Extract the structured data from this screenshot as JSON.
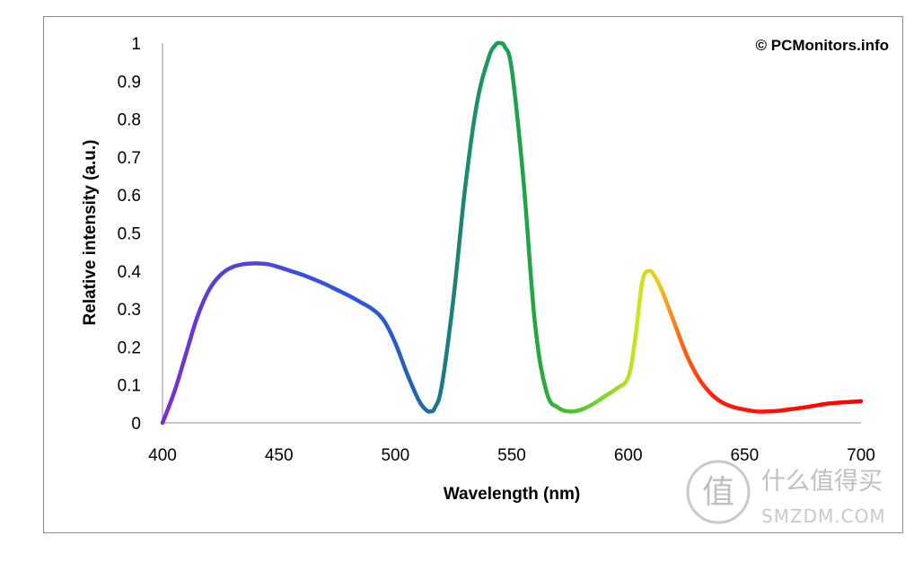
{
  "chart_data": {
    "type": "line",
    "title": "",
    "xlabel": "Wavelength (nm)",
    "ylabel": "Relative intensity (a.u.)",
    "xlim": [
      400,
      700
    ],
    "ylim": [
      0,
      1
    ],
    "x_ticks": [
      "400",
      "450",
      "500",
      "550",
      "600",
      "650",
      "700"
    ],
    "y_ticks": [
      "0",
      "0.1",
      "0.2",
      "0.3",
      "0.4",
      "0.5",
      "0.6",
      "0.7",
      "0.8",
      "0.9",
      "1"
    ],
    "grid": false,
    "legend": "none",
    "annotation": "© PCMonitors.info",
    "series": [
      {
        "x": [
          400,
          405,
          410,
          415,
          420,
          425,
          430,
          435,
          440,
          445,
          450,
          455,
          460,
          465,
          470,
          475,
          480,
          485,
          490,
          495,
          500,
          505,
          510,
          513,
          515,
          517,
          520,
          525,
          530,
          535,
          540,
          543,
          545,
          547,
          550,
          555,
          560,
          565,
          570,
          575,
          580,
          585,
          590,
          595,
          600,
          603,
          606,
          609,
          612,
          615,
          620,
          625,
          630,
          635,
          640,
          645,
          650,
          655,
          660,
          665,
          670,
          675,
          680,
          685,
          690,
          695,
          700
        ],
        "y": [
          0,
          0.08,
          0.18,
          0.28,
          0.35,
          0.39,
          0.41,
          0.418,
          0.42,
          0.418,
          0.41,
          0.4,
          0.39,
          0.378,
          0.365,
          0.35,
          0.335,
          0.318,
          0.3,
          0.27,
          0.21,
          0.13,
          0.06,
          0.035,
          0.03,
          0.04,
          0.1,
          0.33,
          0.62,
          0.84,
          0.96,
          0.995,
          1.0,
          0.99,
          0.93,
          0.64,
          0.26,
          0.08,
          0.04,
          0.03,
          0.035,
          0.05,
          0.07,
          0.09,
          0.12,
          0.22,
          0.37,
          0.4,
          0.38,
          0.34,
          0.26,
          0.18,
          0.12,
          0.08,
          0.055,
          0.042,
          0.035,
          0.03,
          0.03,
          0.032,
          0.036,
          0.04,
          0.045,
          0.05,
          0.053,
          0.055,
          0.057
        ]
      }
    ],
    "line_gradient": [
      {
        "stop": 0.0,
        "color": "#7a2fd0"
      },
      {
        "stop": 0.08,
        "color": "#5a3dd8"
      },
      {
        "stop": 0.25,
        "color": "#2f56e0"
      },
      {
        "stop": 0.36,
        "color": "#2a5fb8"
      },
      {
        "stop": 0.4,
        "color": "#1a7a82"
      },
      {
        "stop": 0.47,
        "color": "#1c9a5a"
      },
      {
        "stop": 0.54,
        "color": "#22a83e"
      },
      {
        "stop": 0.62,
        "color": "#6dd12a"
      },
      {
        "stop": 0.68,
        "color": "#c7e81e"
      },
      {
        "stop": 0.71,
        "color": "#f0c81c"
      },
      {
        "stop": 0.74,
        "color": "#ff6a12"
      },
      {
        "stop": 0.79,
        "color": "#ff1a0c"
      },
      {
        "stop": 1.0,
        "color": "#ff0000"
      }
    ]
  },
  "watermark": {
    "chinese": "什么值得买",
    "latin": "SMZDM.COM",
    "seal_char": "值"
  }
}
